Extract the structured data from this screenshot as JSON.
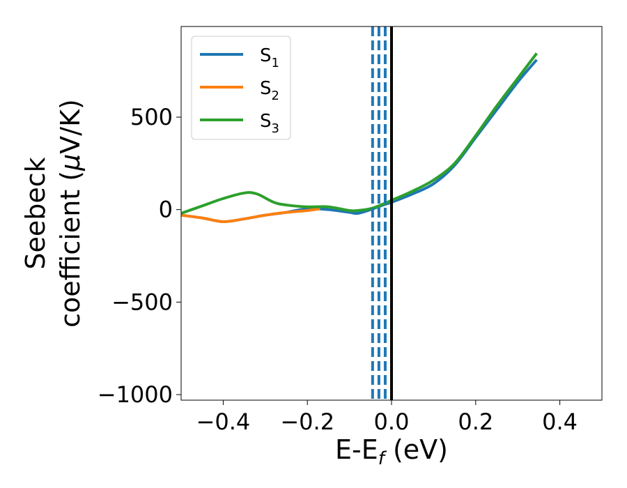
{
  "chart_data": {
    "type": "line",
    "xlabel": "E-E",
    "xlabel_sub": "f",
    "xlabel_unit": " (eV)",
    "ylabel_line1": "Seebeck",
    "ylabel_line2": "coefficient  (",
    "ylabel_mu": "μ",
    "ylabel_unit": "V/K)",
    "xlim": [
      -0.5,
      0.5
    ],
    "ylim": [
      -1030,
      990
    ],
    "xticks": [
      -0.4,
      -0.2,
      0.0,
      0.2,
      0.4
    ],
    "xtick_labels": [
      "−0.4",
      "−0.2",
      "0.0",
      "0.2",
      "0.4"
    ],
    "yticks": [
      -1000,
      -500,
      0,
      500
    ],
    "ytick_labels": [
      "−1000",
      "−500",
      "0",
      "500"
    ],
    "grid": false,
    "legend_position": "top-left",
    "vlines_dashed": [
      -0.045,
      -0.03,
      -0.015
    ],
    "vline_solid": 0.0,
    "colors": {
      "S1": "#1f77b4",
      "S2": "#ff7f0e",
      "S3": "#2ca02c",
      "vline_solid": "#000000"
    },
    "series": [
      {
        "name": "S",
        "sub": "1",
        "x": [
          -0.5,
          -0.45,
          -0.4,
          -0.35,
          -0.3,
          -0.25,
          -0.2,
          -0.15,
          -0.1,
          -0.08,
          -0.05,
          -0.02,
          0.0,
          0.05,
          0.1,
          0.15,
          0.2,
          0.25,
          0.3,
          0.345
        ],
        "y": [
          -30,
          -45,
          -65,
          -50,
          -30,
          -15,
          5,
          0,
          -15,
          -20,
          0,
          25,
          40,
          85,
          140,
          240,
          390,
          540,
          690,
          810
        ]
      },
      {
        "name": "S",
        "sub": "2",
        "x": [
          -0.5,
          -0.45,
          -0.4,
          -0.35,
          -0.3,
          -0.25,
          -0.2,
          -0.17
        ],
        "y": [
          -30,
          -45,
          -65,
          -50,
          -30,
          -15,
          -5,
          5
        ]
      },
      {
        "name": "S",
        "sub": "3",
        "x": [
          -0.5,
          -0.45,
          -0.4,
          -0.35,
          -0.32,
          -0.28,
          -0.25,
          -0.2,
          -0.15,
          -0.1,
          -0.08,
          -0.05,
          -0.02,
          0.0,
          0.05,
          0.1,
          0.15,
          0.2,
          0.25,
          0.3,
          0.345
        ],
        "y": [
          -20,
          20,
          60,
          90,
          85,
          40,
          25,
          15,
          15,
          -5,
          -5,
          5,
          30,
          50,
          100,
          160,
          250,
          400,
          560,
          710,
          845
        ]
      }
    ]
  }
}
